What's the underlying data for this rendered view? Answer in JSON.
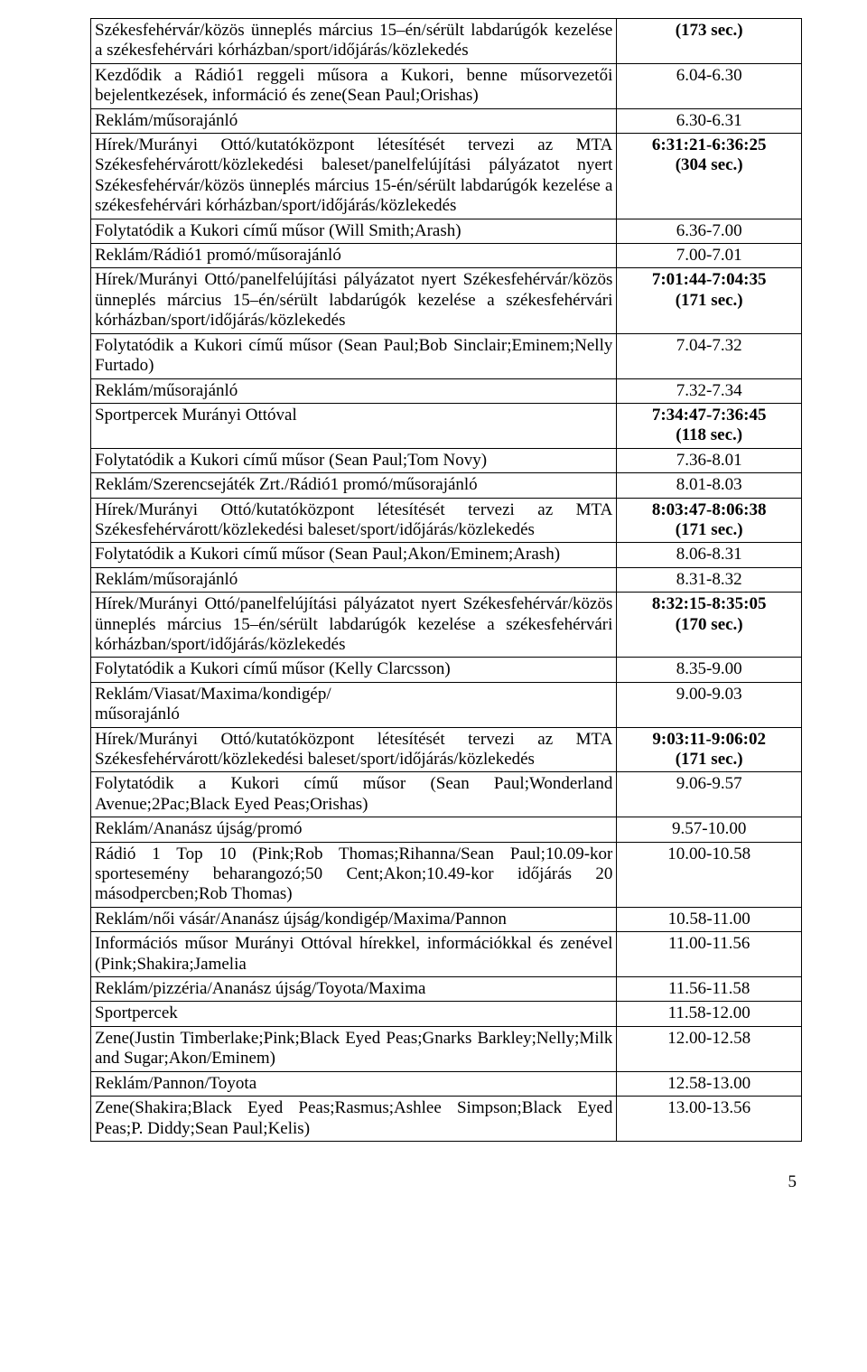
{
  "page": {
    "footer": "5"
  },
  "rows": [
    {
      "left": "Székesfehérvár/közös ünneplés március 15–én/sérült labdarúgók kezelése a székesfehérvári kórházban/sport/időjárás/közlekedés",
      "right_lines": [
        "(173 sec.)"
      ],
      "bold": [
        true
      ]
    },
    {
      "left": "Kezdődik a Rádió1 reggeli műsora a Kukori, benne műsorvezetői bejelentkezések, információ és zene(Sean Paul;Orishas)",
      "right_lines": [
        "6.04-6.30"
      ],
      "bold": [
        false
      ]
    },
    {
      "left": "Reklám/műsorajánló",
      "right_lines": [
        "6.30-6.31"
      ],
      "bold": [
        false
      ]
    },
    {
      "left": "Hírek/Murányi Ottó/kutatóközpont létesítését tervezi az MTA Székesfehérvárott/közlekedési baleset/panelfelújítási pályázatot nyert Székesfehérvár/közös ünneplés március 15-én/sérült labdarúgók kezelése a székesfehérvári kórházban/sport/időjárás/közlekedés",
      "right_lines": [
        "6:31:21-6:36:25",
        "(304 sec.)"
      ],
      "bold": [
        true,
        true
      ]
    },
    {
      "left": "Folytatódik a Kukori című műsor (Will Smith;Arash)",
      "right_lines": [
        "6.36-7.00"
      ],
      "bold": [
        false
      ]
    },
    {
      "left": "Reklám/Rádió1 promó/műsorajánló",
      "right_lines": [
        "7.00-7.01"
      ],
      "bold": [
        false
      ]
    },
    {
      "left": "Hírek/Murányi Ottó/panelfelújítási pályázatot nyert Székesfehérvár/közös ünneplés március 15–én/sérült labdarúgók kezelése a székesfehérvári kórházban/sport/időjárás/közlekedés",
      "right_lines": [
        "7:01:44-7:04:35",
        "(171 sec.)"
      ],
      "bold": [
        true,
        true
      ]
    },
    {
      "left": "Folytatódik a Kukori című műsor (Sean Paul;Bob Sinclair;Eminem;Nelly Furtado)",
      "right_lines": [
        "7.04-7.32"
      ],
      "bold": [
        false
      ]
    },
    {
      "left": "Reklám/műsorajánló",
      "right_lines": [
        "7.32-7.34"
      ],
      "bold": [
        false
      ]
    },
    {
      "left": "Sportpercek Murányi Ottóval",
      "right_lines": [
        "7:34:47-7:36:45",
        "(118 sec.)"
      ],
      "bold": [
        true,
        true
      ]
    },
    {
      "left": "Folytatódik a Kukori című műsor (Sean Paul;Tom Novy)",
      "right_lines": [
        "7.36-8.01"
      ],
      "bold": [
        false
      ]
    },
    {
      "left": "Reklám/Szerencsejáték Zrt./Rádió1 promó/műsorajánló",
      "right_lines": [
        "8.01-8.03"
      ],
      "bold": [
        false
      ]
    },
    {
      "left": "Hírek/Murányi Ottó/kutatóközpont létesítését tervezi az MTA Székesfehérvárott/közlekedési baleset/sport/időjárás/közlekedés",
      "right_lines": [
        "8:03:47-8:06:38",
        "(171 sec.)"
      ],
      "bold": [
        true,
        true
      ]
    },
    {
      "left": "Folytatódik a Kukori című műsor (Sean Paul;Akon/Eminem;Arash)",
      "right_lines": [
        "8.06-8.31"
      ],
      "bold": [
        false
      ]
    },
    {
      "left": "Reklám/műsorajánló",
      "right_lines": [
        "8.31-8.32"
      ],
      "bold": [
        false
      ]
    },
    {
      "left": "Hírek/Murányi Ottó/panelfelújítási pályázatot nyert Székesfehérvár/közös ünneplés március 15–én/sérült labdarúgók kezelése a székesfehérvári kórházban/sport/időjárás/közlekedés",
      "right_lines": [
        "8:32:15-8:35:05",
        "(170 sec.)"
      ],
      "bold": [
        true,
        true
      ]
    },
    {
      "left": "Folytatódik a Kukori című műsor (Kelly Clarcsson)",
      "right_lines": [
        "8.35-9.00"
      ],
      "bold": [
        false
      ]
    },
    {
      "left": "Reklám/Viasat/Maxima/kondigép/\nműsorajánló",
      "right_lines": [
        "9.00-9.03"
      ],
      "bold": [
        false
      ]
    },
    {
      "left": "Hírek/Murányi Ottó/kutatóközpont létesítését tervezi az MTA Székesfehérvárott/közlekedési baleset/sport/időjárás/közlekedés",
      "right_lines": [
        "9:03:11-9:06:02",
        "(171 sec.)"
      ],
      "bold": [
        true,
        true
      ]
    },
    {
      "left": "Folytatódik a Kukori című műsor (Sean Paul;Wonderland Avenue;2Pac;Black Eyed Peas;Orishas)",
      "right_lines": [
        "9.06-9.57"
      ],
      "bold": [
        false
      ]
    },
    {
      "left": "Reklám/Ananász újság/promó",
      "right_lines": [
        "9.57-10.00"
      ],
      "bold": [
        false
      ]
    },
    {
      "left": "Rádió 1 Top 10 (Pink;Rob Thomas;Rihanna/Sean Paul;10.09-kor sportesemény beharangozó;50 Cent;Akon;10.49-kor időjárás 20 másodpercben;Rob Thomas)",
      "right_lines": [
        "10.00-10.58"
      ],
      "bold": [
        false
      ]
    },
    {
      "left": "Reklám/női vásár/Ananász újság/kondigép/Maxima/Pannon",
      "right_lines": [
        "10.58-11.00"
      ],
      "bold": [
        false
      ]
    },
    {
      "left": "Információs műsor Murányi Ottóval hírekkel, információkkal és zenével (Pink;Shakira;Jamelia",
      "right_lines": [
        "11.00-11.56"
      ],
      "bold": [
        false
      ]
    },
    {
      "left": "Reklám/pizzéria/Ananász újság/Toyota/Maxima",
      "right_lines": [
        "11.56-11.58"
      ],
      "bold": [
        false
      ]
    },
    {
      "left": "Sportpercek",
      "right_lines": [
        "11.58-12.00"
      ],
      "bold": [
        false
      ]
    },
    {
      "left": "Zene(Justin Timberlake;Pink;Black Eyed Peas;Gnarks Barkley;Nelly;Milk and Sugar;Akon/Eminem)",
      "right_lines": [
        "12.00-12.58"
      ],
      "bold": [
        false
      ]
    },
    {
      "left": "Reklám/Pannon/Toyota",
      "right_lines": [
        "12.58-13.00"
      ],
      "bold": [
        false
      ]
    },
    {
      "left": "Zene(Shakira;Black Eyed Peas;Rasmus;Ashlee Simpson;Black Eyed Peas;P. Diddy;Sean Paul;Kelis)",
      "right_lines": [
        "13.00-13.56"
      ],
      "bold": [
        false
      ]
    }
  ]
}
